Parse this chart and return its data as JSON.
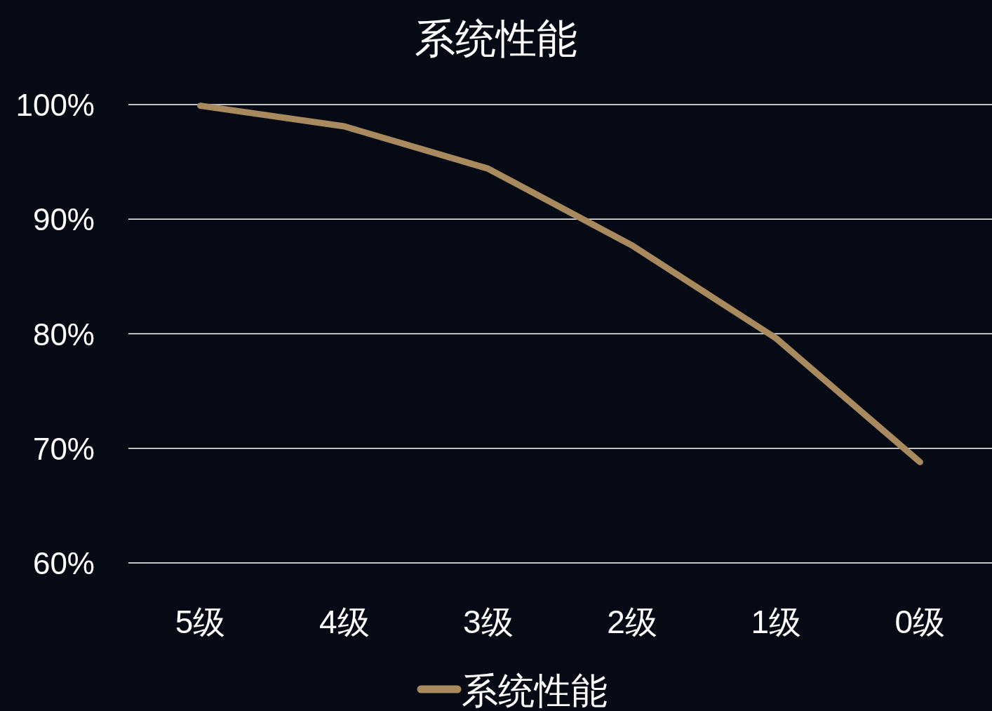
{
  "chart_data": {
    "type": "line",
    "title": "系统性能",
    "categories": [
      "5级",
      "4级",
      "3级",
      "2级",
      "1级",
      "0级"
    ],
    "series": [
      {
        "name": "系统性能",
        "color": "#a88a5e",
        "values": [
          99.9,
          98.1,
          94.4,
          87.7,
          79.6,
          68.8
        ]
      }
    ],
    "ylim": [
      60,
      100
    ],
    "yticks": [
      {
        "value": 60,
        "label": "60%"
      },
      {
        "value": 70,
        "label": "70%"
      },
      {
        "value": 80,
        "label": "80%"
      },
      {
        "value": 90,
        "label": "90%"
      },
      {
        "value": 100,
        "label": "100%"
      }
    ],
    "grid": "y",
    "legend": "bottom",
    "marker": "none",
    "line_style": "solid"
  }
}
